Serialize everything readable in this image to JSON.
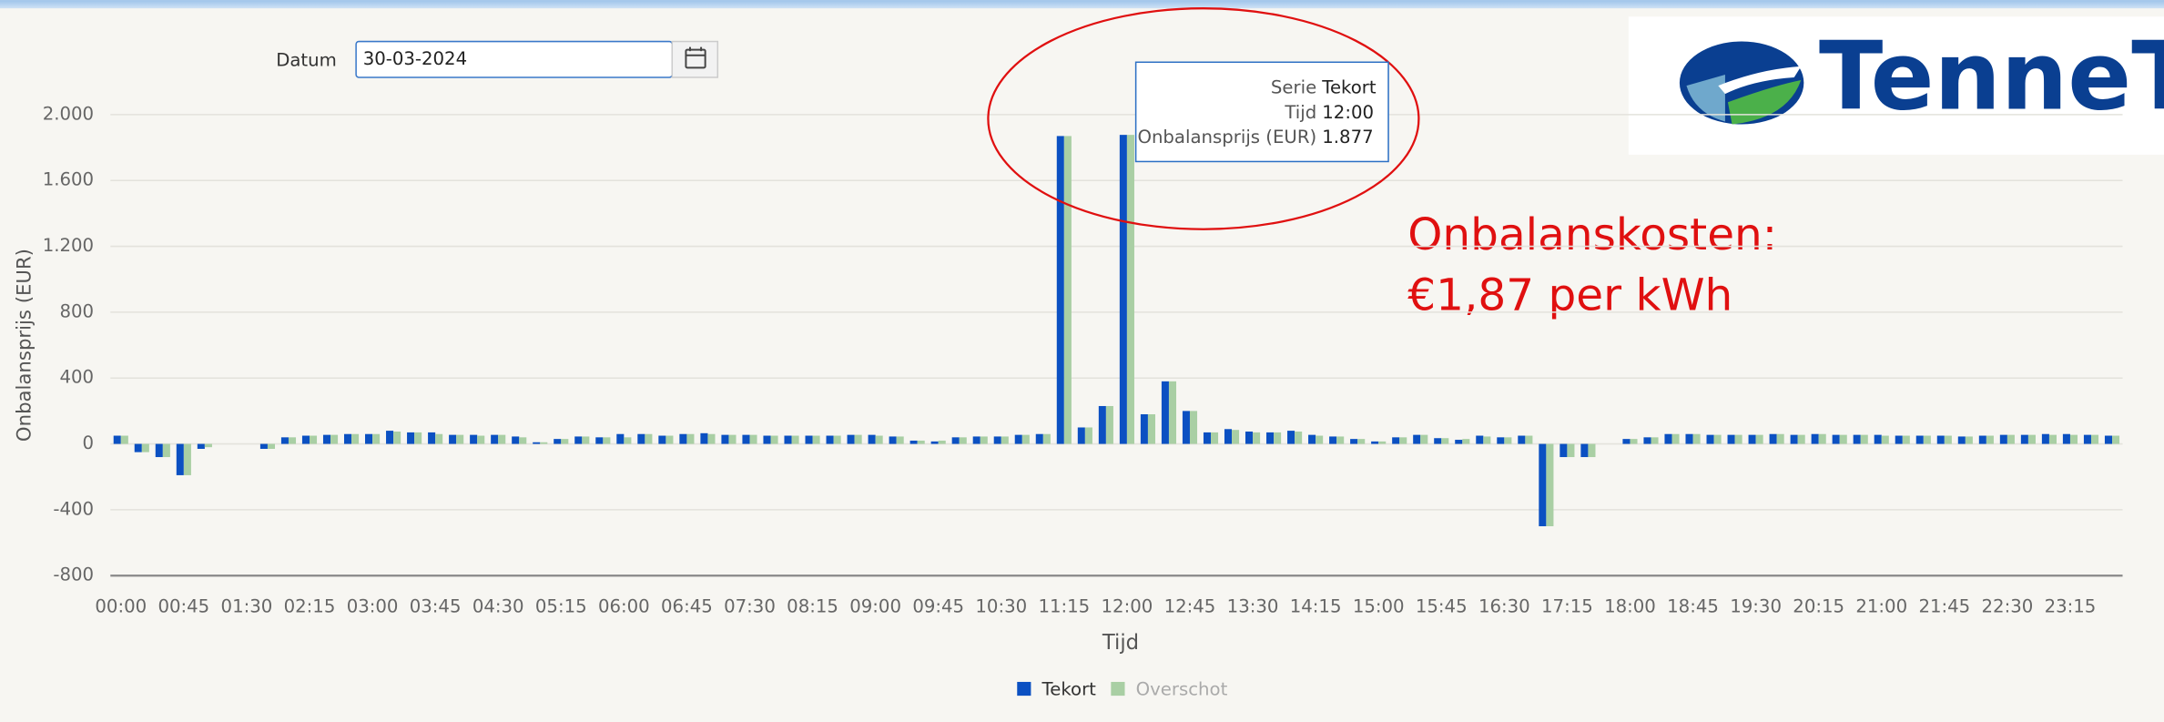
{
  "form": {
    "label": "Datum",
    "date": "30-03-2024"
  },
  "logo": {
    "text": "TenneT"
  },
  "annotation": [
    "Onbalanskosten:",
    "€1,87 per kWh"
  ],
  "tooltip": {
    "rows": [
      [
        "Serie",
        "Tekort"
      ],
      [
        "Tijd",
        "12:00"
      ],
      [
        "Onbalansprijs (EUR)",
        "1.877"
      ]
    ]
  },
  "chart_data": {
    "type": "bar",
    "x_label": "Tijd",
    "y_label": "Onbalansprijs (EUR)",
    "categories": [
      "00:00",
      null,
      null,
      "00:45",
      null,
      null,
      "01:30",
      null,
      null,
      "02:15",
      null,
      null,
      "03:00",
      null,
      null,
      "03:45",
      null,
      null,
      "04:30",
      null,
      null,
      "05:15",
      null,
      null,
      "06:00",
      null,
      null,
      "06:45",
      null,
      null,
      "07:30",
      null,
      null,
      "08:15",
      null,
      null,
      "09:00",
      null,
      null,
      "09:45",
      null,
      null,
      "10:30",
      null,
      null,
      "11:15",
      null,
      null,
      "12:00",
      null,
      null,
      "12:45",
      null,
      null,
      "13:30",
      null,
      null,
      "14:15",
      null,
      null,
      "15:00",
      null,
      null,
      "15:45",
      null,
      null,
      "16:30",
      null,
      null,
      "17:15",
      null,
      null,
      "18:00",
      null,
      null,
      "18:45",
      null,
      null,
      "19:30",
      null,
      null,
      "20:15",
      null,
      null,
      "21:00",
      null,
      null,
      "21:45",
      null,
      null,
      "22:30",
      null,
      null,
      "23:15",
      null,
      null
    ],
    "series": [
      {
        "name": "Tekort",
        "color": "#0b50c2",
        "values": [
          50,
          -50,
          -80,
          -190,
          -30,
          0,
          0,
          -30,
          40,
          50,
          55,
          60,
          60,
          80,
          70,
          70,
          55,
          55,
          55,
          45,
          10,
          30,
          45,
          40,
          60,
          60,
          50,
          60,
          65,
          55,
          55,
          50,
          50,
          50,
          50,
          55,
          55,
          45,
          20,
          15,
          40,
          45,
          45,
          55,
          60,
          1870,
          100,
          230,
          1877,
          180,
          380,
          200,
          70,
          90,
          75,
          70,
          80,
          55,
          45,
          30,
          15,
          40,
          55,
          35,
          25,
          50,
          40,
          50,
          -500,
          -80,
          -80,
          0,
          30,
          40,
          60,
          60,
          55,
          55,
          55,
          60,
          55,
          60,
          55,
          55,
          55,
          50,
          50,
          50,
          45,
          50,
          55,
          55,
          60,
          60,
          55,
          50
        ]
      },
      {
        "name": "Overschot",
        "color": "#a9cfa4",
        "values": [
          50,
          -50,
          -80,
          -190,
          -20,
          0,
          0,
          -30,
          40,
          50,
          55,
          60,
          60,
          75,
          70,
          60,
          55,
          50,
          55,
          40,
          10,
          30,
          45,
          40,
          40,
          60,
          50,
          60,
          60,
          55,
          55,
          50,
          50,
          50,
          50,
          55,
          50,
          45,
          20,
          20,
          40,
          45,
          45,
          55,
          60,
          1870,
          100,
          230,
          1877,
          180,
          380,
          200,
          70,
          85,
          70,
          70,
          75,
          50,
          45,
          30,
          15,
          40,
          55,
          35,
          30,
          45,
          40,
          50,
          -500,
          -80,
          -80,
          0,
          30,
          40,
          60,
          60,
          55,
          55,
          55,
          60,
          55,
          60,
          55,
          55,
          50,
          50,
          50,
          50,
          45,
          50,
          55,
          55,
          55,
          55,
          55,
          50
        ]
      }
    ],
    "ylim": [
      -800,
      2000
    ],
    "yticks": [
      {
        "value": -800,
        "label": "-800"
      },
      {
        "value": -400,
        "label": "-400"
      },
      0,
      400,
      800,
      {
        "value": 1200,
        "label": "1.200"
      },
      {
        "value": 1600,
        "label": "1.600"
      },
      {
        "value": 2000,
        "label": "2.000"
      }
    ],
    "grid": true,
    "legend": "bottom"
  }
}
